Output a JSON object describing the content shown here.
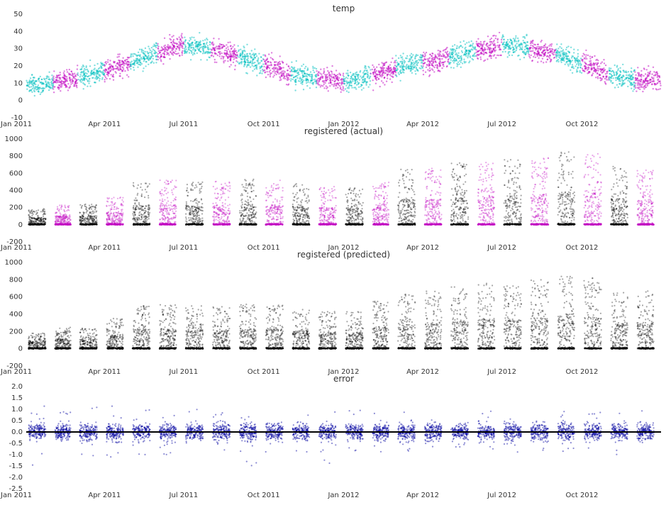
{
  "chart_data": [
    {
      "type": "scatter",
      "title": "temp",
      "ylim": [
        -10,
        50
      ],
      "yticks": [
        "50",
        "40",
        "30",
        "20",
        "10",
        "0",
        "-10"
      ],
      "xlim": [
        "2011-01-01",
        "2012-12-31"
      ],
      "xticks": [
        "Jan 2011",
        "Apr 2011",
        "Jul 2011",
        "Oct 2011",
        "Jan 2012",
        "Apr 2012",
        "Jul 2012",
        "Oct 2012"
      ],
      "grid": false,
      "colors": [
        "#00c0c0",
        "#c000c0"
      ],
      "x": [
        "2011-01",
        "2011-02",
        "2011-03",
        "2011-04",
        "2011-05",
        "2011-06",
        "2011-07",
        "2011-08",
        "2011-09",
        "2011-10",
        "2011-11",
        "2011-12",
        "2012-01",
        "2012-02",
        "2012-03",
        "2012-04",
        "2012-05",
        "2012-06",
        "2012-07",
        "2012-08",
        "2012-09",
        "2012-10",
        "2012-11",
        "2012-12"
      ],
      "values": [
        8,
        10,
        14,
        17,
        22,
        28,
        32,
        30,
        26,
        21,
        15,
        13,
        11,
        14,
        19,
        22,
        25,
        29,
        32,
        30,
        27,
        22,
        15,
        12
      ]
    },
    {
      "type": "scatter",
      "title": "registered (actual)",
      "ylim": [
        -200,
        1000
      ],
      "yticks": [
        "1000",
        "800",
        "600",
        "400",
        "200",
        "0",
        "-200"
      ],
      "xlim": [
        "2011-01-01",
        "2012-12-31"
      ],
      "xticks": [
        "Jan 2011",
        "Apr 2011",
        "Jul 2011",
        "Oct 2011",
        "Jan 2012",
        "Apr 2012",
        "Jul 2012",
        "Oct 2012"
      ],
      "grid": false,
      "colors": [
        "#000000",
        "#c000c0"
      ],
      "x": [
        "2011-01",
        "2011-02",
        "2011-03",
        "2011-04",
        "2011-05",
        "2011-06",
        "2011-07",
        "2011-08",
        "2011-09",
        "2011-10",
        "2011-11",
        "2011-12",
        "2012-01",
        "2012-02",
        "2012-03",
        "2012-04",
        "2012-05",
        "2012-06",
        "2012-07",
        "2012-08",
        "2012-09",
        "2012-10",
        "2012-11",
        "2012-12"
      ],
      "values": [
        190,
        230,
        240,
        320,
        500,
        520,
        500,
        510,
        530,
        520,
        480,
        450,
        430,
        500,
        660,
        660,
        720,
        750,
        760,
        790,
        850,
        830,
        680,
        640
      ]
    },
    {
      "type": "scatter",
      "title": "registered (predicted)",
      "ylim": [
        -200,
        1000
      ],
      "yticks": [
        "1000",
        "800",
        "600",
        "400",
        "200",
        "0",
        "-200"
      ],
      "xlim": [
        "2011-01-01",
        "2012-12-31"
      ],
      "xticks": [
        "Jan 2011",
        "Apr 2011",
        "Jul 2011",
        "Oct 2011",
        "Jan 2012",
        "Apr 2012",
        "Jul 2012",
        "Oct 2012"
      ],
      "grid": false,
      "colors": [
        "#000000"
      ],
      "x": [
        "2011-01",
        "2011-02",
        "2011-03",
        "2011-04",
        "2011-05",
        "2011-06",
        "2011-07",
        "2011-08",
        "2011-09",
        "2011-10",
        "2011-11",
        "2011-12",
        "2012-01",
        "2012-02",
        "2012-03",
        "2012-04",
        "2012-05",
        "2012-06",
        "2012-07",
        "2012-08",
        "2012-09",
        "2012-10",
        "2012-11",
        "2012-12"
      ],
      "values": [
        180,
        250,
        240,
        350,
        500,
        510,
        500,
        500,
        520,
        510,
        460,
        430,
        430,
        560,
        630,
        680,
        720,
        760,
        730,
        800,
        840,
        820,
        660,
        680
      ]
    },
    {
      "type": "scatter",
      "title": "error",
      "ylim": [
        -2.5,
        2.0
      ],
      "yticks": [
        "2.0",
        "1.5",
        "1.0",
        "0.5",
        "0.0",
        "-0.5",
        "-1.0",
        "-1.5",
        "-2.0",
        "-2.5"
      ],
      "xlim": [
        "2011-01-01",
        "2012-12-31"
      ],
      "xticks": [
        "Jan 2011",
        "Apr 2011",
        "Jul 2011",
        "Oct 2011",
        "Jan 2012",
        "Apr 2012",
        "Jul 2012",
        "Oct 2012"
      ],
      "grid": false,
      "colors": [
        "#0000a0",
        "#000000"
      ],
      "reference_line": 0,
      "x": [
        "2011-01",
        "2011-02",
        "2011-03",
        "2011-04",
        "2011-05",
        "2011-06",
        "2011-07",
        "2011-08",
        "2011-09",
        "2011-10",
        "2011-11",
        "2011-12",
        "2012-01",
        "2012-02",
        "2012-03",
        "2012-04",
        "2012-05",
        "2012-06",
        "2012-07",
        "2012-08",
        "2012-09",
        "2012-10",
        "2012-11",
        "2012-12"
      ],
      "values": [
        1.6,
        1.0,
        1.1,
        1.2,
        1.0,
        1.1,
        1.2,
        1.0,
        1.6,
        1.1,
        0.9,
        1.5,
        1.0,
        0.9,
        1.0,
        0.9,
        1.1,
        1.0,
        0.9,
        0.8,
        1.0,
        0.9,
        1.0,
        1.0
      ]
    }
  ]
}
